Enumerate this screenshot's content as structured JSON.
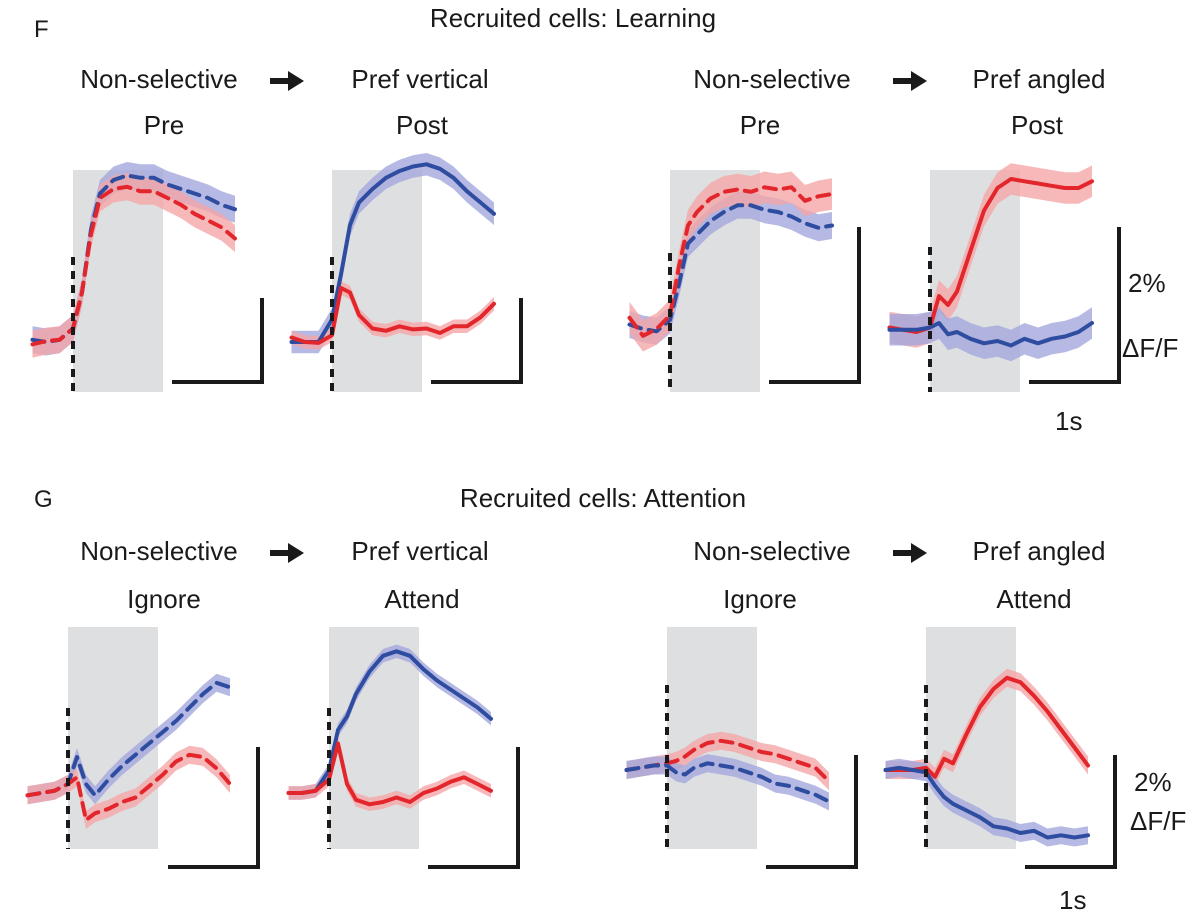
{
  "colors": {
    "red": "#e3262b",
    "red_band": "#f4a6a8",
    "blue": "#2f4da0",
    "blue_band": "#a3a7dc",
    "stim_shade": "#dedfe1",
    "ink": "#1a1a1a"
  },
  "scale_bar": {
    "y_label": "2%",
    "y_unit": "ΔF/F",
    "x_label": "1s"
  },
  "panels": [
    {
      "letter": "F",
      "title": "Recruited cells: Learning",
      "pairs": [
        {
          "from_label": "Non-selective",
          "to_label": "Pref vertical",
          "arrow_icon": "right-arrow-icon"
        },
        {
          "from_label": "Non-selective",
          "to_label": "Pref angled",
          "arrow_icon": "right-arrow-icon"
        }
      ],
      "subtitles": [
        "Pre",
        "Post",
        "Pre",
        "Post"
      ]
    },
    {
      "letter": "G",
      "title": "Recruited cells: Attention",
      "pairs": [
        {
          "from_label": "Non-selective",
          "to_label": "Pref vertical",
          "arrow_icon": "right-arrow-icon"
        },
        {
          "from_label": "Non-selective",
          "to_label": "Pref angled",
          "arrow_icon": "right-arrow-icon"
        }
      ],
      "subtitles": [
        "Ignore",
        "Attend",
        "Ignore",
        "Attend"
      ]
    }
  ],
  "chart_data": [
    {
      "type": "line",
      "panel": "F",
      "condition": "Pre",
      "cell_group": "Non-selective → Pref vertical",
      "x_unit": "s",
      "y_unit": "% ΔF/F",
      "stimulus": [
        0,
        1
      ],
      "series": [
        {
          "color": "blue",
          "style": "dashed",
          "x": [
            -0.45,
            -0.3,
            -0.15,
            0,
            0.1,
            0.2,
            0.3,
            0.45,
            0.6,
            0.75,
            0.9,
            1.05,
            1.2,
            1.35,
            1.5,
            1.65,
            1.8
          ],
          "y": [
            0.05,
            0,
            0.05,
            0.3,
            1.1,
            2.5,
            3.3,
            3.6,
            3.7,
            3.65,
            3.65,
            3.5,
            3.4,
            3.3,
            3.2,
            3.05,
            2.95
          ],
          "err": 0.3
        },
        {
          "color": "red",
          "style": "dashed",
          "x": [
            -0.45,
            -0.3,
            -0.15,
            0,
            0.1,
            0.2,
            0.3,
            0.45,
            0.6,
            0.75,
            0.9,
            1.05,
            1.2,
            1.35,
            1.5,
            1.65,
            1.8
          ],
          "y": [
            -0.05,
            0.02,
            0.05,
            0.3,
            1.1,
            2.4,
            3.2,
            3.4,
            3.45,
            3.35,
            3.35,
            3.2,
            3.05,
            2.85,
            2.7,
            2.55,
            2.3
          ],
          "err": 0.3
        }
      ]
    },
    {
      "type": "line",
      "panel": "F",
      "condition": "Post",
      "cell_group": "Non-selective → Pref vertical",
      "x_unit": "s",
      "y_unit": "% ΔF/F",
      "stimulus": [
        0,
        1
      ],
      "series": [
        {
          "color": "blue",
          "style": "solid",
          "x": [
            -0.45,
            -0.3,
            -0.15,
            0,
            0.1,
            0.2,
            0.3,
            0.45,
            0.6,
            0.75,
            0.9,
            1.05,
            1.2,
            1.35,
            1.5,
            1.65,
            1.8
          ],
          "y": [
            0,
            0,
            0,
            0.5,
            1.5,
            2.6,
            3.1,
            3.4,
            3.65,
            3.8,
            3.9,
            3.95,
            3.85,
            3.65,
            3.35,
            3.1,
            2.85
          ],
          "err": 0.25
        },
        {
          "color": "red",
          "style": "solid",
          "x": [
            -0.45,
            -0.3,
            -0.15,
            0,
            0.1,
            0.2,
            0.3,
            0.45,
            0.6,
            0.75,
            0.9,
            1.05,
            1.2,
            1.35,
            1.5,
            1.65,
            1.8
          ],
          "y": [
            0.1,
            0,
            -0.02,
            0.15,
            1.2,
            1.1,
            0.6,
            0.3,
            0.25,
            0.35,
            0.28,
            0.3,
            0.2,
            0.35,
            0.35,
            0.55,
            0.85
          ],
          "err": 0.15
        }
      ]
    },
    {
      "type": "line",
      "panel": "F",
      "condition": "Pre",
      "cell_group": "Non-selective → Pref angled",
      "x_unit": "s",
      "y_unit": "% ΔF/F",
      "stimulus": [
        0,
        1
      ],
      "series": [
        {
          "color": "blue",
          "style": "dashed",
          "x": [
            -0.45,
            -0.3,
            -0.15,
            0,
            0.1,
            0.2,
            0.3,
            0.45,
            0.6,
            0.75,
            0.9,
            1.05,
            1.2,
            1.35,
            1.5,
            1.65,
            1.8
          ],
          "y": [
            0.3,
            0.2,
            0.15,
            0.4,
            1.2,
            2.1,
            2.3,
            2.6,
            2.8,
            2.95,
            2.95,
            2.85,
            2.8,
            2.7,
            2.55,
            2.45,
            2.5
          ],
          "err": 0.3
        },
        {
          "color": "red",
          "style": "dashed",
          "x": [
            -0.45,
            -0.3,
            -0.15,
            0,
            0.1,
            0.2,
            0.3,
            0.45,
            0.6,
            0.75,
            0.9,
            1.05,
            1.2,
            1.35,
            1.5,
            1.65,
            1.8
          ],
          "y": [
            0.45,
            0.05,
            0.2,
            0.5,
            1.6,
            2.5,
            2.8,
            3.1,
            3.25,
            3.3,
            3.25,
            3.35,
            3.3,
            3.35,
            3.05,
            3.15,
            3.2
          ],
          "err": 0.35
        }
      ]
    },
    {
      "type": "line",
      "panel": "F",
      "condition": "Post",
      "cell_group": "Non-selective → Pref angled",
      "x_unit": "s",
      "y_unit": "% ΔF/F",
      "stimulus": [
        0,
        1
      ],
      "series": [
        {
          "color": "red",
          "style": "solid",
          "x": [
            -0.45,
            -0.3,
            -0.15,
            0,
            0.1,
            0.2,
            0.3,
            0.45,
            0.6,
            0.75,
            0.9,
            1.05,
            1.2,
            1.35,
            1.5,
            1.65,
            1.8
          ],
          "y": [
            0.1,
            0.05,
            0,
            0.1,
            0.8,
            0.6,
            0.9,
            1.8,
            2.7,
            3.2,
            3.4,
            3.35,
            3.3,
            3.25,
            3.2,
            3.2,
            3.35
          ],
          "err": 0.35
        },
        {
          "color": "blue",
          "style": "solid",
          "x": [
            -0.45,
            -0.3,
            -0.15,
            0,
            0.1,
            0.2,
            0.3,
            0.45,
            0.6,
            0.75,
            0.9,
            1.05,
            1.2,
            1.35,
            1.5,
            1.65,
            1.8
          ],
          "y": [
            0.05,
            0.05,
            0.05,
            0.1,
            0.2,
            -0.05,
            0,
            -0.15,
            -0.25,
            -0.2,
            -0.3,
            -0.15,
            -0.25,
            -0.15,
            -0.1,
            0,
            0.2
          ],
          "err": 0.35
        }
      ]
    },
    {
      "type": "line",
      "panel": "G",
      "condition": "Ignore",
      "cell_group": "Non-selective → Pref vertical",
      "x_unit": "s",
      "y_unit": "% ΔF/F",
      "stimulus": [
        0,
        1
      ],
      "series": [
        {
          "color": "blue",
          "style": "dashed",
          "x": [
            -0.45,
            -0.3,
            -0.15,
            0,
            0.1,
            0.2,
            0.3,
            0.45,
            0.6,
            0.75,
            0.9,
            1.05,
            1.2,
            1.35,
            1.5,
            1.65,
            1.8
          ],
          "y": [
            -0.05,
            0,
            0.05,
            0.2,
            0.8,
            0.2,
            -0.05,
            0.3,
            0.6,
            0.85,
            1.1,
            1.35,
            1.6,
            1.9,
            2.2,
            2.45,
            2.35
          ],
          "err": 0.2
        },
        {
          "color": "red",
          "style": "dashed",
          "x": [
            -0.45,
            -0.3,
            -0.15,
            0,
            0.1,
            0.2,
            0.3,
            0.45,
            0.6,
            0.75,
            0.9,
            1.05,
            1.2,
            1.35,
            1.5,
            1.65,
            1.8
          ],
          "y": [
            -0.05,
            0,
            0.05,
            0.2,
            0.35,
            -0.6,
            -0.45,
            -0.35,
            -0.2,
            -0.1,
            0.15,
            0.4,
            0.7,
            0.85,
            0.8,
            0.55,
            0.2
          ],
          "err": 0.2
        }
      ]
    },
    {
      "type": "line",
      "panel": "G",
      "condition": "Attend",
      "cell_group": "Non-selective → Pref vertical",
      "x_unit": "s",
      "y_unit": "% ΔF/F",
      "stimulus": [
        0,
        1
      ],
      "series": [
        {
          "color": "blue",
          "style": "solid",
          "x": [
            -0.45,
            -0.3,
            -0.15,
            0,
            0.1,
            0.2,
            0.3,
            0.45,
            0.6,
            0.75,
            0.9,
            1.05,
            1.2,
            1.35,
            1.5,
            1.65,
            1.8
          ],
          "y": [
            0,
            0,
            0.05,
            0.5,
            1.4,
            1.7,
            2.2,
            2.7,
            3.05,
            3.15,
            3.05,
            2.75,
            2.5,
            2.3,
            2.1,
            1.9,
            1.65
          ],
          "err": 0.15
        },
        {
          "color": "red",
          "style": "solid",
          "x": [
            -0.45,
            -0.3,
            -0.15,
            0,
            0.1,
            0.2,
            0.3,
            0.45,
            0.6,
            0.75,
            0.9,
            1.05,
            1.2,
            1.35,
            1.5,
            1.65,
            1.8
          ],
          "y": [
            0,
            0,
            0.05,
            0.3,
            1.1,
            0.2,
            -0.15,
            -0.25,
            -0.2,
            -0.1,
            -0.2,
            0,
            0.1,
            0.25,
            0.35,
            0.2,
            0.05
          ],
          "err": 0.15
        }
      ]
    },
    {
      "type": "line",
      "panel": "G",
      "condition": "Ignore",
      "cell_group": "Non-selective → Pref angled",
      "x_unit": "s",
      "y_unit": "% ΔF/F",
      "stimulus": [
        0,
        1
      ],
      "series": [
        {
          "color": "red",
          "style": "dashed",
          "x": [
            -0.45,
            -0.3,
            -0.15,
            0,
            0.1,
            0.2,
            0.3,
            0.45,
            0.6,
            0.75,
            0.9,
            1.05,
            1.2,
            1.35,
            1.5,
            1.65,
            1.8
          ],
          "y": [
            0,
            0.05,
            0.1,
            0.15,
            0.2,
            0.3,
            0.45,
            0.6,
            0.65,
            0.6,
            0.5,
            0.4,
            0.35,
            0.25,
            0.15,
            0.05,
            -0.25
          ],
          "err": 0.2
        },
        {
          "color": "blue",
          "style": "dashed",
          "x": [
            -0.45,
            -0.3,
            -0.15,
            0,
            0.1,
            0.2,
            0.3,
            0.45,
            0.6,
            0.75,
            0.9,
            1.05,
            1.2,
            1.35,
            1.5,
            1.65,
            1.8
          ],
          "y": [
            0,
            0.05,
            0.1,
            0.1,
            -0.05,
            -0.1,
            0.05,
            0.15,
            0.1,
            0.05,
            -0.05,
            -0.15,
            -0.3,
            -0.35,
            -0.45,
            -0.55,
            -0.7
          ],
          "err": 0.2
        }
      ]
    },
    {
      "type": "line",
      "panel": "G",
      "condition": "Attend",
      "cell_group": "Non-selective → Pref angled",
      "x_unit": "s",
      "y_unit": "% ΔF/F",
      "stimulus": [
        0,
        1
      ],
      "series": [
        {
          "color": "red",
          "style": "solid",
          "x": [
            -0.45,
            -0.3,
            -0.15,
            0,
            0.1,
            0.2,
            0.3,
            0.45,
            0.6,
            0.75,
            0.9,
            1.05,
            1.2,
            1.35,
            1.5,
            1.65,
            1.8
          ],
          "y": [
            0,
            0,
            0,
            0.05,
            -0.15,
            0.25,
            0.15,
            0.8,
            1.4,
            1.8,
            2.05,
            1.95,
            1.65,
            1.3,
            0.9,
            0.5,
            0.1
          ],
          "err": 0.2
        },
        {
          "color": "blue",
          "style": "solid",
          "x": [
            -0.45,
            -0.3,
            -0.15,
            0,
            0.1,
            0.2,
            0.3,
            0.45,
            0.6,
            0.75,
            0.9,
            1.05,
            1.2,
            1.35,
            1.5,
            1.65,
            1.8
          ],
          "y": [
            0,
            0.05,
            0,
            -0.05,
            -0.35,
            -0.6,
            -0.75,
            -0.9,
            -1.05,
            -1.25,
            -1.3,
            -1.4,
            -1.35,
            -1.5,
            -1.45,
            -1.5,
            -1.45
          ],
          "err": 0.2
        }
      ]
    }
  ]
}
